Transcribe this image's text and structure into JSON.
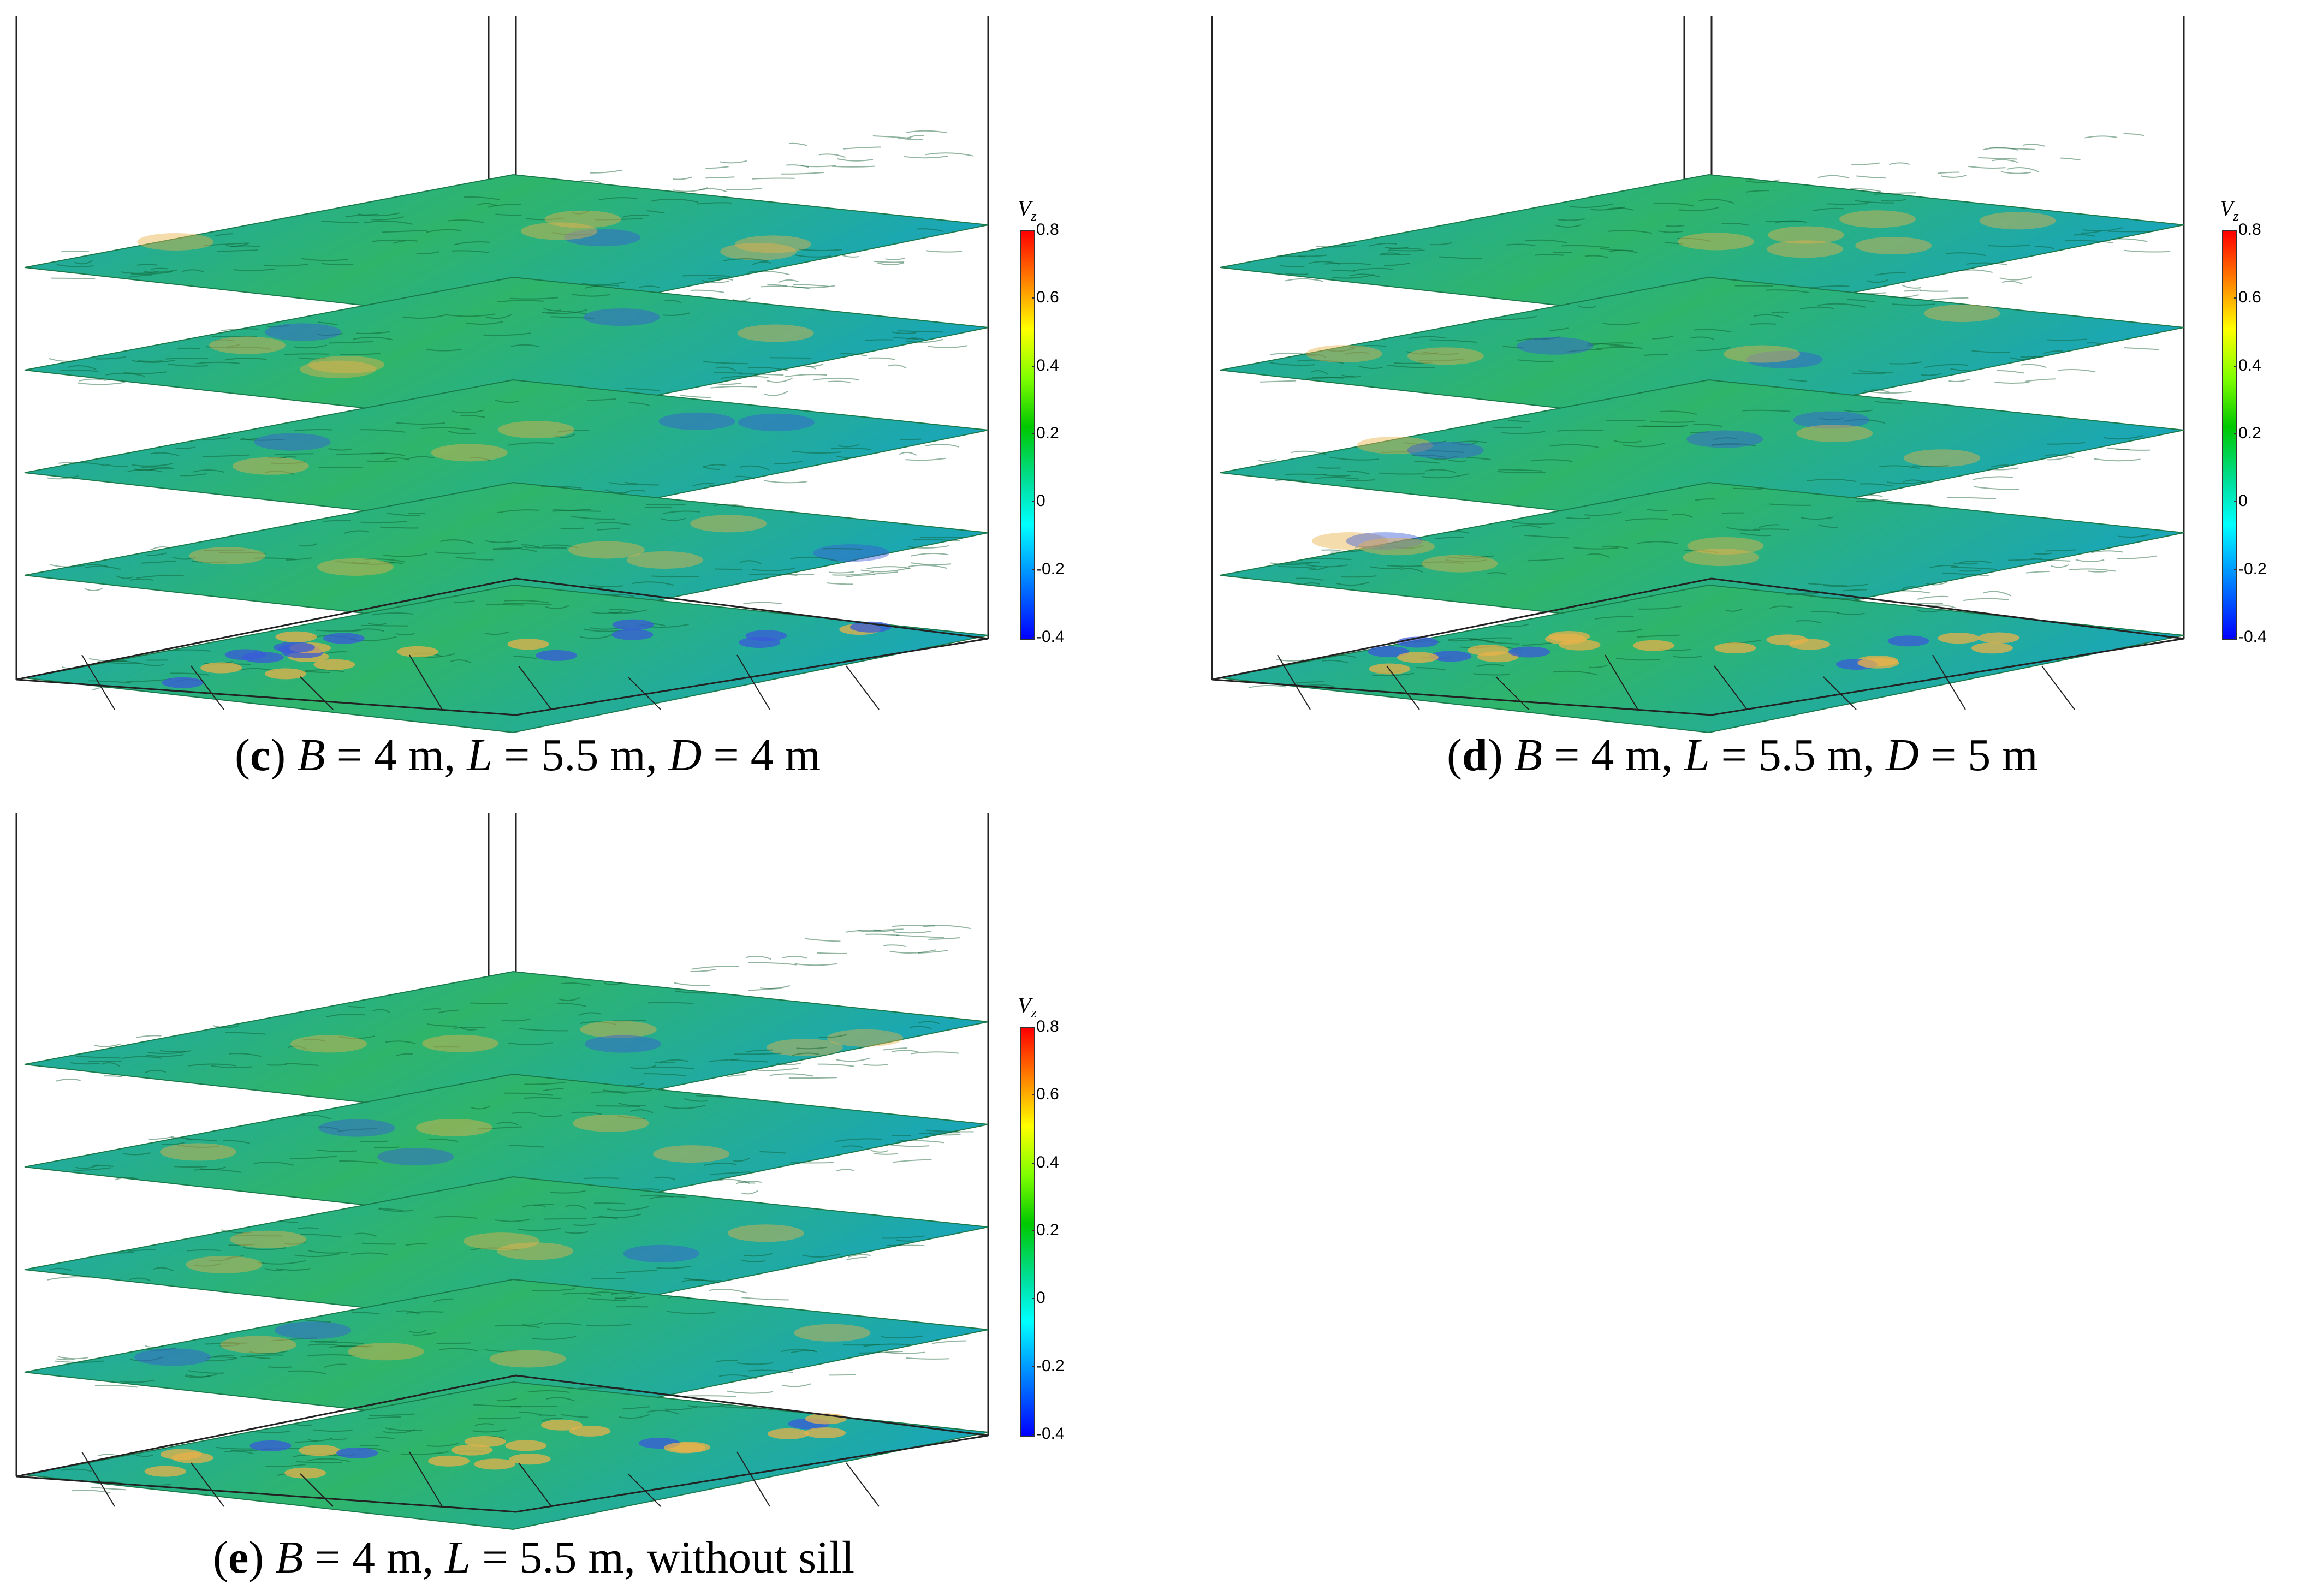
{
  "colorbar": {
    "title": "V",
    "subscript": "z",
    "ticks": [
      "0.8",
      "0.6",
      "0.4",
      "0.2",
      "0",
      "-0.2",
      "-0.4"
    ],
    "range": [
      -0.4,
      0.8
    ]
  },
  "panels": [
    {
      "id": "c",
      "label": "c",
      "caption_parts": [
        {
          "text": "B",
          "italic": true
        },
        {
          "text": " = 4 m, ",
          "italic": false
        },
        {
          "text": "L",
          "italic": true
        },
        {
          "text": " = 5.5 m, ",
          "italic": false
        },
        {
          "text": "D",
          "italic": true
        },
        {
          "text": " = 4 m",
          "italic": false
        }
      ]
    },
    {
      "id": "d",
      "label": "d",
      "caption_parts": [
        {
          "text": "B",
          "italic": true
        },
        {
          "text": " = 4 m, ",
          "italic": false
        },
        {
          "text": "L",
          "italic": true
        },
        {
          "text": " = 5.5 m, ",
          "italic": false
        },
        {
          "text": "D",
          "italic": true
        },
        {
          "text": " = 5 m",
          "italic": false
        }
      ]
    },
    {
      "id": "e",
      "label": "e",
      "caption_parts": [
        {
          "text": "B",
          "italic": true
        },
        {
          "text": " = 4 m, ",
          "italic": false
        },
        {
          "text": "L",
          "italic": true
        },
        {
          "text": " = 5.5 m, without sill",
          "italic": false
        }
      ]
    }
  ],
  "colors": {
    "plane_base": "#2fb56a",
    "plane_blue": "#1aa6b8",
    "hot": "#e8b24a",
    "cold": "#3a5ad8",
    "line": "#222222"
  }
}
